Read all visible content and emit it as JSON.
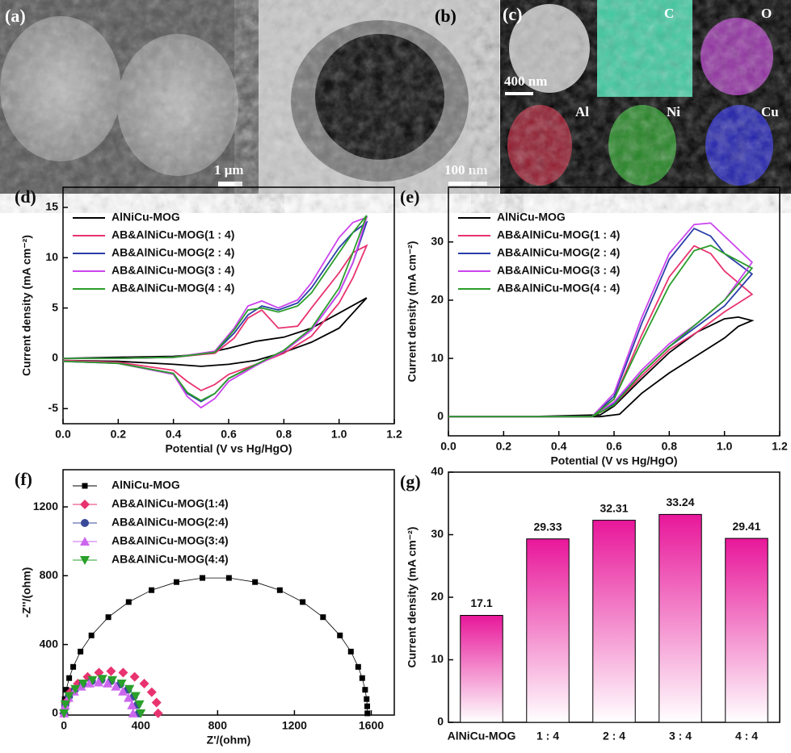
{
  "images": [
    {
      "label": "(a)",
      "scale_bar": "1 μm"
    },
    {
      "label": "(b)",
      "scale_bar": "100 nm"
    },
    {
      "label": "(c)",
      "scale_bar": "400 nm",
      "maps": [
        "C",
        "O",
        "Al",
        "Ni",
        "Cu"
      ]
    }
  ],
  "chart_data": [
    {
      "type": "line",
      "label": "(d)",
      "xlabel": "Potential (V vs Hg/HgO)",
      "ylabel": "Current density (mA cm⁻²)",
      "xlim": [
        0,
        1.2
      ],
      "ylim": [
        -6.5,
        17
      ],
      "xticks": [
        {
          "value": 0,
          "label": "0.0"
        },
        0.2,
        0.4,
        0.6,
        0.8,
        {
          "value": 1,
          "label": "1.0"
        },
        1.2
      ],
      "yticks": [
        -5,
        0,
        5,
        10,
        15
      ],
      "legend": "upper left",
      "series": [
        {
          "name": "AlNiCu-MOG",
          "color": "#000000",
          "x": [
            0,
            0.2,
            0.4,
            0.5,
            0.6,
            0.7,
            0.8,
            0.9,
            1.0,
            1.1,
            1.0,
            0.9,
            0.8,
            0.7,
            0.6,
            0.5,
            0.4,
            0.2,
            0
          ],
          "values": [
            0,
            0.1,
            0.2,
            0.4,
            1,
            1.7,
            2.1,
            3,
            4.5,
            6,
            3,
            1.6,
            0.6,
            -0.2,
            -0.6,
            -0.8,
            -0.6,
            -0.3,
            -0.2
          ]
        },
        {
          "name": "AB&AlNiCu-MOG(1 : 4)",
          "color": "#e8336f",
          "x": [
            0,
            0.2,
            0.4,
            0.55,
            0.62,
            0.67,
            0.72,
            0.78,
            0.85,
            0.9,
            1.0,
            1.05,
            1.1,
            1.05,
            1.0,
            0.9,
            0.8,
            0.7,
            0.6,
            0.55,
            0.5,
            0.45,
            0.4,
            0.2,
            0
          ],
          "values": [
            0,
            0,
            0.1,
            0.5,
            2,
            4,
            4.8,
            3,
            3.2,
            5,
            8.5,
            10.5,
            11.2,
            8,
            5.5,
            2.2,
            0.5,
            -0.6,
            -1.6,
            -2.6,
            -3.2,
            -2.3,
            -1.2,
            -0.4,
            -0.2
          ]
        },
        {
          "name": "AB&AlNiCu-MOG(2 : 4)",
          "color": "#2b3ea8",
          "x": [
            0,
            0.2,
            0.4,
            0.55,
            0.62,
            0.67,
            0.72,
            0.78,
            0.85,
            0.9,
            1.0,
            1.05,
            1.1,
            1.05,
            1.0,
            0.9,
            0.8,
            0.7,
            0.6,
            0.55,
            0.5,
            0.45,
            0.4,
            0.2,
            0
          ],
          "values": [
            0,
            0,
            0.1,
            0.6,
            2.5,
            4.3,
            5.2,
            4.8,
            5.5,
            7,
            11,
            12.5,
            13.5,
            9.5,
            6.5,
            2.8,
            0.7,
            -0.6,
            -2,
            -3.5,
            -4.3,
            -3.5,
            -1.5,
            -0.5,
            -0.3
          ]
        },
        {
          "name": "AB&AlNiCu-MOG(3 : 4)",
          "color": "#cc44ee",
          "x": [
            0,
            0.2,
            0.4,
            0.55,
            0.62,
            0.67,
            0.72,
            0.78,
            0.85,
            0.9,
            1.0,
            1.05,
            1.1,
            1.05,
            1.0,
            0.9,
            0.8,
            0.7,
            0.6,
            0.55,
            0.5,
            0.45,
            0.4,
            0.2,
            0
          ],
          "values": [
            0,
            0,
            0.1,
            0.7,
            3,
            5.2,
            5.7,
            5,
            5.8,
            7.5,
            12,
            13.5,
            14,
            9.5,
            6.5,
            2.8,
            0.7,
            -0.7,
            -2.3,
            -4,
            -4.9,
            -3.8,
            -1.6,
            -0.5,
            -0.3
          ]
        },
        {
          "name": "AB&AlNiCu-MOG(4 : 4)",
          "color": "#2a9d2a",
          "x": [
            0,
            0.2,
            0.4,
            0.55,
            0.62,
            0.67,
            0.72,
            0.78,
            0.85,
            0.9,
            1.0,
            1.05,
            1.1,
            1.05,
            1.0,
            0.9,
            0.8,
            0.7,
            0.6,
            0.55,
            0.5,
            0.45,
            0.4,
            0.2,
            0
          ],
          "values": [
            0,
            0,
            0.1,
            0.6,
            2.8,
            4.8,
            5,
            4.6,
            5.2,
            6.5,
            10.5,
            12.5,
            14.2,
            10.5,
            7,
            3,
            0.8,
            -0.6,
            -2,
            -3.5,
            -4.2,
            -3.4,
            -1.5,
            -0.5,
            -0.3
          ]
        }
      ]
    },
    {
      "type": "line",
      "label": "(e)",
      "xlabel": "Potential (V vs Hg/HgO)",
      "ylabel": "Current density (mA cm⁻²)",
      "xlim": [
        0,
        1.2
      ],
      "ylim": [
        -3.3,
        39.4
      ],
      "xticks": [
        {
          "value": 0,
          "label": "0.0"
        },
        0.2,
        0.4,
        0.6,
        0.8,
        {
          "value": 1,
          "label": "1.0"
        },
        1.2
      ],
      "yticks": [
        0,
        10,
        20,
        30
      ],
      "legend": "upper left",
      "series": [
        {
          "name": "AlNiCu-MOG",
          "color": "#000000",
          "x": [
            0,
            0.3,
            0.55,
            0.62,
            0.7,
            0.8,
            0.9,
            1.0,
            1.05,
            1.1,
            1.05,
            1.0,
            0.9,
            0.8,
            0.7,
            0.6,
            0.55,
            0.3,
            0
          ],
          "values": [
            0,
            0,
            0,
            0.4,
            4,
            7.5,
            10.5,
            13.5,
            15.5,
            16.5,
            17.1,
            16.8,
            14.5,
            11,
            6.5,
            1.8,
            0.3,
            0,
            0
          ]
        },
        {
          "name": "AB&AlNiCu-MOG(1 : 4)",
          "color": "#e8336f",
          "x": [
            0,
            0.3,
            0.52,
            0.6,
            0.7,
            0.8,
            0.89,
            0.95,
            1.0,
            1.1,
            1.0,
            0.9,
            0.8,
            0.7,
            0.6,
            0.52,
            0.3,
            0
          ],
          "values": [
            0,
            0,
            0,
            3,
            14,
            24,
            29.33,
            28,
            25,
            21,
            18,
            14.5,
            11.5,
            7,
            2,
            0,
            0,
            0
          ]
        },
        {
          "name": "AB&AlNiCu-MOG(2 : 4)",
          "color": "#2b3ea8",
          "x": [
            0,
            0.3,
            0.52,
            0.6,
            0.7,
            0.8,
            0.89,
            0.95,
            1.0,
            1.1,
            1.0,
            0.9,
            0.8,
            0.7,
            0.6,
            0.52,
            0.3,
            0
          ],
          "values": [
            0,
            0,
            0,
            3.5,
            16,
            27,
            32.31,
            31,
            28,
            24.5,
            19,
            15.5,
            12,
            7.5,
            2.2,
            0,
            0,
            0
          ]
        },
        {
          "name": "AB&AlNiCu-MOG(3 : 4)",
          "color": "#cc44ee",
          "x": [
            0,
            0.3,
            0.52,
            0.6,
            0.7,
            0.8,
            0.89,
            0.95,
            1.0,
            1.1,
            1.0,
            0.9,
            0.8,
            0.7,
            0.6,
            0.52,
            0.3,
            0
          ],
          "values": [
            0,
            0,
            0,
            4,
            17,
            28,
            33,
            33.24,
            31,
            26.5,
            20,
            16,
            12.5,
            8,
            2.5,
            0,
            0,
            0
          ]
        },
        {
          "name": "AB&AlNiCu-MOG(4 : 4)",
          "color": "#2a9d2a",
          "x": [
            0,
            0.3,
            0.52,
            0.6,
            0.7,
            0.8,
            0.89,
            0.95,
            1.0,
            1.1,
            1.0,
            0.9,
            0.8,
            0.7,
            0.6,
            0.52,
            0.3,
            0
          ],
          "values": [
            0,
            0,
            0,
            3,
            13,
            22.5,
            28.5,
            29.41,
            28,
            25.5,
            20,
            16,
            12,
            7.5,
            2,
            0,
            0,
            0
          ]
        }
      ]
    },
    {
      "type": "scatter",
      "label": "(f)",
      "xlabel": "Z'/(ohm)",
      "ylabel": "-Z''/(ohm)",
      "xlim": [
        -5,
        1720
      ],
      "ylim": [
        -10,
        1416
      ],
      "xticks": [
        0,
        400,
        800,
        1200,
        1600
      ],
      "yticks": [
        0,
        400,
        800,
        1200
      ],
      "legend": "upper left",
      "series": [
        {
          "name": "AlNiCu-MOG",
          "color": "#000000",
          "marker": "square",
          "line": true,
          "x": [
            0,
            1,
            4,
            12,
            27,
            48,
            86,
            143,
            231,
            337,
            456,
            586,
            721,
            859,
            995,
            1124,
            1243,
            1349,
            1437,
            1494,
            1532,
            1553,
            1568,
            1576,
            1579,
            1580
          ],
          "values": [
            0,
            41,
            83,
            137,
            205,
            270,
            359,
            453,
            559,
            647,
            716,
            763,
            787,
            787,
            763,
            716,
            647,
            559,
            453,
            359,
            270,
            205,
            137,
            83,
            41,
            0
          ]
        },
        {
          "name": "AB&AlNiCu-MOG(1:4)",
          "color": "#e8336f",
          "marker": "diamond",
          "x": [
            0,
            8,
            33,
            72,
            123,
            182,
            245,
            308,
            368,
            418,
            457,
            482,
            490
          ],
          "values": [
            0,
            63,
            123,
            173,
            212,
            237,
            245,
            237,
            212,
            173,
            123,
            63,
            0
          ]
        },
        {
          "name": "AB&AlNiCu-MOG(2:4)",
          "color": "#3a4a9a",
          "marker": "circle",
          "x": [
            0,
            7,
            26,
            57,
            98,
            145,
            195,
            245,
            293,
            333,
            364,
            383,
            390
          ],
          "values": [
            0,
            50,
            98,
            138,
            169,
            188,
            195,
            188,
            169,
            138,
            98,
            50,
            0
          ]
        },
        {
          "name": "AB&AlNiCu-MOG(3:4)",
          "color": "#cc66ee",
          "marker": "triangle",
          "x": [
            0,
            6,
            24,
            53,
            90,
            133,
            180,
            227,
            270,
            307,
            336,
            354,
            360
          ],
          "values": [
            0,
            47,
            90,
            127,
            156,
            174,
            180,
            174,
            156,
            127,
            90,
            47,
            0
          ]
        },
        {
          "name": "AB&AlNiCu-MOG(4:4)",
          "color": "#2aa02a",
          "marker": "triangle-down",
          "x": [
            0,
            7,
            27,
            59,
            100,
            148,
            200,
            252,
            300,
            341,
            373,
            393,
            400
          ],
          "values": [
            0,
            52,
            100,
            141,
            173,
            193,
            200,
            193,
            173,
            141,
            100,
            52,
            0
          ]
        }
      ]
    },
    {
      "type": "bar",
      "label": "(g)",
      "ylabel": "Current density (mA cm⁻²)",
      "categories": [
        "AlNiCu-MOG",
        "1 : 4",
        "2 : 4",
        "3 : 4",
        "4 : 4"
      ],
      "values": [
        17.1,
        29.33,
        32.31,
        33.24,
        29.41
      ],
      "color": "#e8179a",
      "ylim": [
        0,
        40
      ],
      "yticks": [
        0,
        10,
        20,
        30,
        40
      ]
    }
  ]
}
